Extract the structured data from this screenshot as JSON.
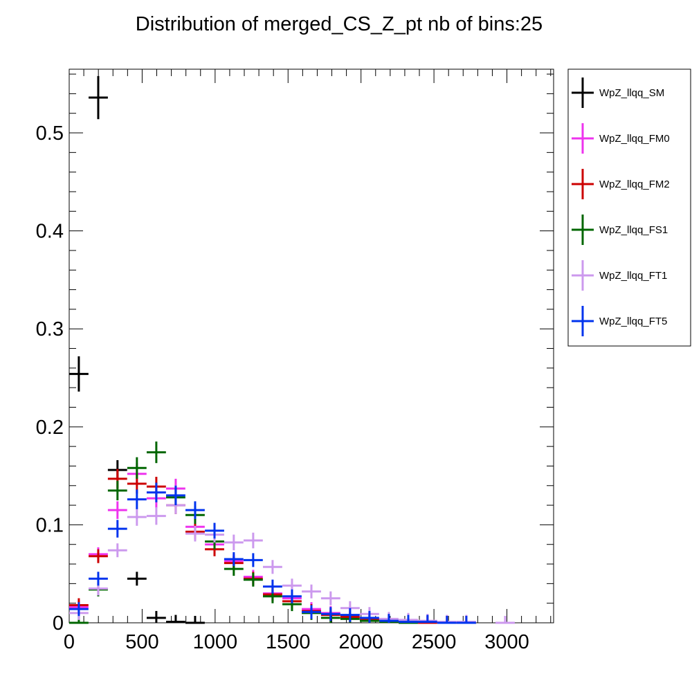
{
  "chart_data": {
    "type": "scatter",
    "title": "Distribution of merged_CS_Z_pt nb of bins:25",
    "xlabel": "",
    "ylabel": "",
    "xlim": [
      0,
      3320
    ],
    "ylim": [
      0,
      0.565
    ],
    "x_ticks": [
      0,
      500,
      1000,
      1500,
      2000,
      2500,
      3000
    ],
    "y_ticks": [
      0,
      0.1,
      0.2,
      0.3,
      0.4,
      0.5
    ],
    "x_tick_labels": [
      "0",
      "500",
      "1000",
      "1500",
      "2000",
      "2500",
      "3000"
    ],
    "y_tick_labels": [
      "0",
      "0.1",
      "0.2",
      "0.3",
      "0.4",
      "0.5"
    ],
    "bin_half_width": 66,
    "legend_position": "right",
    "series": [
      {
        "name": "WpZ_llqq_SM",
        "color": "#000000",
        "x": [
          66,
          199,
          331,
          464,
          597,
          730,
          863
        ],
        "y": [
          0.254,
          0.536,
          0.156,
          0.045,
          0.005,
          0.001,
          0.0
        ],
        "yerr": [
          0.018,
          0.022,
          0.01,
          0.004,
          0.002,
          0.001,
          0.0
        ]
      },
      {
        "name": "WpZ_llqq_FM0",
        "color": "#ee33ee",
        "x": [
          66,
          199,
          331,
          464,
          597,
          730,
          863,
          996,
          1128,
          1261,
          1394,
          1527,
          1660,
          1792,
          1925,
          2058,
          2191,
          2324,
          2456,
          2589,
          2722
        ],
        "y": [
          0.016,
          0.07,
          0.115,
          0.152,
          0.127,
          0.137,
          0.098,
          0.08,
          0.063,
          0.047,
          0.03,
          0.025,
          0.014,
          0.01,
          0.007,
          0.004,
          0.002,
          0.001,
          0.001,
          0.0,
          0.0
        ],
        "yerr": [
          0.004,
          0.007,
          0.009,
          0.011,
          0.01,
          0.01,
          0.009,
          0.008,
          0.007,
          0.006,
          0.005,
          0.004,
          0.003,
          0.003,
          0.002,
          0.002,
          0.001,
          0.001,
          0.001,
          0.0,
          0.0
        ]
      },
      {
        "name": "WpZ_llqq_FM2",
        "color": "#cc0000",
        "x": [
          66,
          199,
          331,
          464,
          597,
          730,
          863,
          996,
          1128,
          1261,
          1394,
          1527,
          1660,
          1792,
          1925,
          2058,
          2191,
          2324,
          2456,
          2589,
          2722
        ],
        "y": [
          0.018,
          0.068,
          0.147,
          0.142,
          0.139,
          0.12,
          0.093,
          0.075,
          0.061,
          0.045,
          0.029,
          0.022,
          0.012,
          0.008,
          0.006,
          0.003,
          0.002,
          0.001,
          0.0,
          0.0,
          0.0
        ],
        "yerr": [
          0.004,
          0.007,
          0.01,
          0.01,
          0.01,
          0.009,
          0.008,
          0.007,
          0.007,
          0.006,
          0.005,
          0.004,
          0.003,
          0.003,
          0.002,
          0.002,
          0.001,
          0.001,
          0.0,
          0.0,
          0.0
        ]
      },
      {
        "name": "WpZ_llqq_FS1",
        "color": "#006600",
        "x": [
          66,
          199,
          331,
          464,
          597,
          730,
          863,
          996,
          1128,
          1261,
          1394,
          1527,
          1660,
          1792,
          1925,
          2058,
          2191,
          2324
        ],
        "y": [
          0.0,
          0.034,
          0.135,
          0.158,
          0.174,
          0.128,
          0.11,
          0.083,
          0.055,
          0.044,
          0.027,
          0.019,
          0.01,
          0.005,
          0.004,
          0.002,
          0.001,
          0.0
        ],
        "yerr": [
          0.0,
          0.005,
          0.01,
          0.011,
          0.011,
          0.01,
          0.009,
          0.008,
          0.006,
          0.006,
          0.004,
          0.004,
          0.003,
          0.002,
          0.002,
          0.001,
          0.001,
          0.0
        ]
      },
      {
        "name": "WpZ_llqq_FT1",
        "color": "#cc99ee",
        "x": [
          66,
          199,
          331,
          464,
          597,
          730,
          863,
          996,
          1128,
          1261,
          1394,
          1527,
          1660,
          1792,
          1925,
          2058,
          2191,
          2324,
          2456,
          2589,
          2722,
          2988
        ],
        "y": [
          0.01,
          0.035,
          0.074,
          0.108,
          0.109,
          0.12,
          0.091,
          0.09,
          0.082,
          0.084,
          0.057,
          0.038,
          0.032,
          0.025,
          0.015,
          0.009,
          0.004,
          0.003,
          0.002,
          0.001,
          0.001,
          0.0
        ],
        "yerr": [
          0.003,
          0.005,
          0.007,
          0.009,
          0.009,
          0.009,
          0.008,
          0.008,
          0.008,
          0.008,
          0.006,
          0.005,
          0.005,
          0.004,
          0.003,
          0.003,
          0.002,
          0.001,
          0.001,
          0.001,
          0.001,
          0.0
        ]
      },
      {
        "name": "WpZ_llqq_FT5",
        "color": "#0033ee",
        "x": [
          66,
          199,
          331,
          464,
          597,
          730,
          863,
          996,
          1128,
          1261,
          1394,
          1527,
          1660,
          1792,
          1925,
          2058,
          2191,
          2324,
          2456,
          2589,
          2722
        ],
        "y": [
          0.014,
          0.045,
          0.096,
          0.126,
          0.133,
          0.13,
          0.115,
          0.094,
          0.065,
          0.064,
          0.037,
          0.027,
          0.011,
          0.009,
          0.008,
          0.005,
          0.002,
          0.001,
          0.001,
          0.0,
          0.0
        ],
        "yerr": [
          0.003,
          0.006,
          0.009,
          0.01,
          0.01,
          0.01,
          0.009,
          0.008,
          0.007,
          0.007,
          0.005,
          0.004,
          0.003,
          0.003,
          0.002,
          0.002,
          0.001,
          0.001,
          0.001,
          0.0,
          0.0
        ]
      }
    ]
  }
}
